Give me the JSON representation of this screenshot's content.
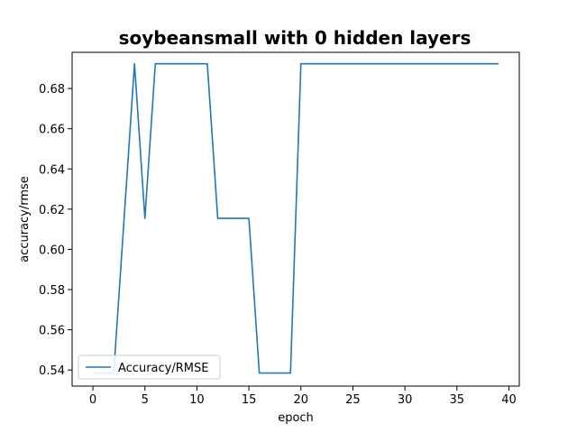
{
  "chart_data": {
    "type": "line",
    "title": "soybeansmall with 0 hidden layers",
    "xlabel": "epoch",
    "ylabel": "accuracy/rmse",
    "xlim": [
      -2,
      41
    ],
    "ylim": [
      0.532,
      0.698
    ],
    "xticks": [
      0,
      5,
      10,
      15,
      20,
      25,
      30,
      35,
      40
    ],
    "yticks": [
      0.54,
      0.56,
      0.58,
      0.6,
      0.62,
      0.64,
      0.66,
      0.68
    ],
    "ytick_labels": [
      "0.54",
      "0.56",
      "0.58",
      "0.60",
      "0.62",
      "0.64",
      "0.66",
      "0.68"
    ],
    "grid": false,
    "legend_position": "lower-left",
    "series": [
      {
        "name": "Accuracy/RMSE",
        "color": "#1f77b4",
        "x": [
          0,
          1,
          2,
          3,
          4,
          5,
          6,
          7,
          8,
          9,
          10,
          11,
          12,
          13,
          14,
          15,
          16,
          17,
          18,
          19,
          20,
          21,
          22,
          23,
          24,
          25,
          26,
          27,
          28,
          29,
          30,
          31,
          32,
          33,
          34,
          35,
          36,
          37,
          38,
          39
        ],
        "values": [
          0.5385,
          0.5385,
          0.5385,
          0.6154,
          0.6923,
          0.6154,
          0.6923,
          0.6923,
          0.6923,
          0.6923,
          0.6923,
          0.6923,
          0.6154,
          0.6154,
          0.6154,
          0.6154,
          0.5385,
          0.5385,
          0.5385,
          0.5385,
          0.6923,
          0.6923,
          0.6923,
          0.6923,
          0.6923,
          0.6923,
          0.6923,
          0.6923,
          0.6923,
          0.6923,
          0.6923,
          0.6923,
          0.6923,
          0.6923,
          0.6923,
          0.6923,
          0.6923,
          0.6923,
          0.6923,
          0.6923
        ]
      }
    ]
  }
}
